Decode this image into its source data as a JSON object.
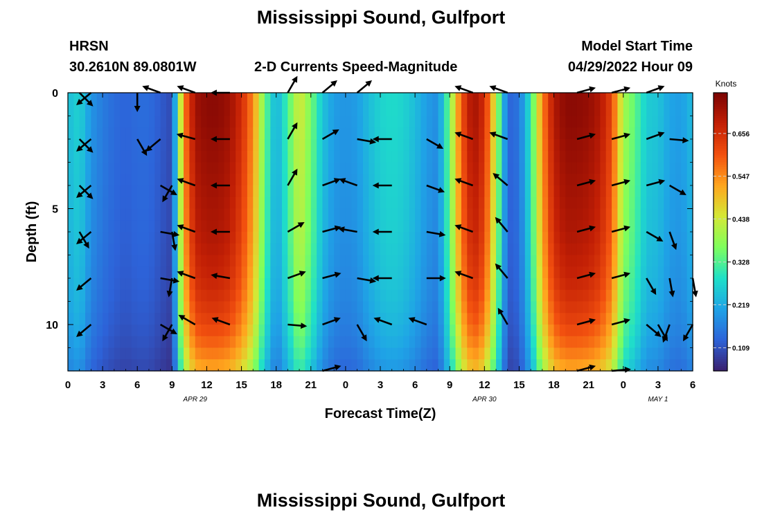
{
  "page": {
    "title": "Mississippi Sound, Gulfport",
    "subtitle": "2-D Currents Speed-Magnitude",
    "station_code": "HRSN",
    "coordinates": "30.2610N  89.0801W",
    "model_start_label": "Model Start Time",
    "model_start_value": "04/29/2022 Hour 09",
    "footer_title": "Mississippi Sound, Gulfport"
  },
  "chart_data": {
    "type": "heatmap",
    "title": "2-D Currents Speed-Magnitude",
    "xlabel": "Forecast Time(Z)",
    "ylabel": "Depth (ft)",
    "x_tick_labels": [
      "0",
      "3",
      "6",
      "9",
      "12",
      "15",
      "18",
      "21",
      "0",
      "3",
      "6",
      "9",
      "12",
      "15",
      "18",
      "21",
      "0",
      "3",
      "6"
    ],
    "x_hours_range": [
      0,
      54
    ],
    "y_range": [
      0,
      12
    ],
    "y_ticks": [
      0,
      5,
      10
    ],
    "y_reversed": true,
    "date_labels": [
      {
        "text": "APR 29",
        "hour": 11
      },
      {
        "text": "APR 30",
        "hour": 36
      },
      {
        "text": "MAY 1",
        "hour": 51
      }
    ],
    "colorbar": {
      "unit": "Knots",
      "ticks": [
        "0.109",
        "0.219",
        "0.328",
        "0.438",
        "0.547",
        "0.656"
      ],
      "range": [
        0.05,
        0.76
      ],
      "colors": [
        "#3b1f6e",
        "#2d63d9",
        "#1fa3e6",
        "#1fe0c8",
        "#7fff5c",
        "#d4e836",
        "#ffa51e",
        "#f2500f",
        "#c21f05",
        "#7a0403"
      ]
    },
    "speed_profile": {
      "hours": [
        0,
        1,
        2,
        3,
        4,
        5,
        6,
        7,
        8,
        9,
        10,
        11,
        12,
        13,
        14,
        15,
        16,
        17,
        18,
        19,
        20,
        21,
        22,
        23,
        24,
        25,
        26,
        27,
        28,
        29,
        30,
        31,
        32,
        33,
        34,
        35,
        36,
        37,
        38,
        39,
        40,
        41,
        42,
        43,
        44,
        45,
        46,
        47,
        48,
        49,
        50,
        51,
        52,
        53,
        54
      ],
      "knots": [
        0.24,
        0.27,
        0.19,
        0.16,
        0.14,
        0.13,
        0.14,
        0.14,
        0.12,
        0.1,
        0.55,
        0.72,
        0.74,
        0.74,
        0.72,
        0.66,
        0.55,
        0.35,
        0.22,
        0.32,
        0.45,
        0.36,
        0.25,
        0.2,
        0.19,
        0.2,
        0.24,
        0.27,
        0.28,
        0.27,
        0.24,
        0.2,
        0.18,
        0.36,
        0.6,
        0.72,
        0.66,
        0.42,
        0.13,
        0.15,
        0.3,
        0.55,
        0.7,
        0.74,
        0.74,
        0.73,
        0.7,
        0.62,
        0.4,
        0.34,
        0.26,
        0.25,
        0.21,
        0.2,
        0.24
      ]
    },
    "depth_factor": {
      "depths_ft": [
        0,
        1,
        2,
        3,
        4,
        5,
        6,
        7,
        8,
        9,
        10,
        11,
        12
      ],
      "factor": [
        1.0,
        1.0,
        0.99,
        0.98,
        0.97,
        0.96,
        0.95,
        0.93,
        0.91,
        0.88,
        0.84,
        0.78,
        0.7
      ]
    },
    "arrow_depths_ft": [
      0,
      2,
      4,
      6,
      8,
      10,
      12
    ],
    "arrow_columns": [
      {
        "hour": 1,
        "dirs": [
          45,
          45,
          45,
          60,
          null,
          null,
          null
        ]
      },
      {
        "hour": 2,
        "dirs": [
          140,
          140,
          140,
          140,
          140,
          140,
          null
        ]
      },
      {
        "hour": 6,
        "dirs": [
          90,
          60,
          null,
          null,
          null,
          null,
          null
        ]
      },
      {
        "hour": 8,
        "dirs": [
          200,
          140,
          30,
          10,
          10,
          30,
          null
        ]
      },
      {
        "hour": 9,
        "dirs": [
          null,
          null,
          120,
          80,
          100,
          120,
          null
        ]
      },
      {
        "hour": 11,
        "dirs": [
          200,
          195,
          200,
          200,
          200,
          210,
          null
        ]
      },
      {
        "hour": 14,
        "dirs": [
          180,
          180,
          180,
          180,
          190,
          200,
          null
        ]
      },
      {
        "hour": 19,
        "dirs": [
          300,
          300,
          300,
          330,
          340,
          5,
          null
        ]
      },
      {
        "hour": 22,
        "dirs": [
          320,
          330,
          340,
          345,
          345,
          340,
          345
        ]
      },
      {
        "hour": 25,
        "dirs": [
          320,
          10,
          200,
          190,
          10,
          60,
          null
        ]
      },
      {
        "hour": 28,
        "dirs": [
          null,
          180,
          180,
          180,
          180,
          200,
          null
        ]
      },
      {
        "hour": 31,
        "dirs": [
          null,
          30,
          20,
          10,
          0,
          200,
          null
        ]
      },
      {
        "hour": 35,
        "dirs": [
          200,
          200,
          200,
          200,
          200,
          null,
          null
        ]
      },
      {
        "hour": 38,
        "dirs": [
          200,
          200,
          220,
          230,
          230,
          240,
          null
        ]
      },
      {
        "hour": 44,
        "dirs": [
          345,
          345,
          345,
          345,
          345,
          345,
          345
        ]
      },
      {
        "hour": 47,
        "dirs": [
          345,
          345,
          345,
          345,
          345,
          345,
          355
        ]
      },
      {
        "hour": 50,
        "dirs": [
          340,
          340,
          345,
          30,
          60,
          40,
          null
        ]
      },
      {
        "hour": 51,
        "dirs": [
          null,
          null,
          null,
          null,
          null,
          60,
          null
        ]
      },
      {
        "hour": 52,
        "dirs": [
          null,
          5,
          30,
          70,
          80,
          110,
          null
        ]
      },
      {
        "hour": 54,
        "dirs": [
          null,
          null,
          null,
          null,
          80,
          120,
          null
        ]
      }
    ]
  }
}
